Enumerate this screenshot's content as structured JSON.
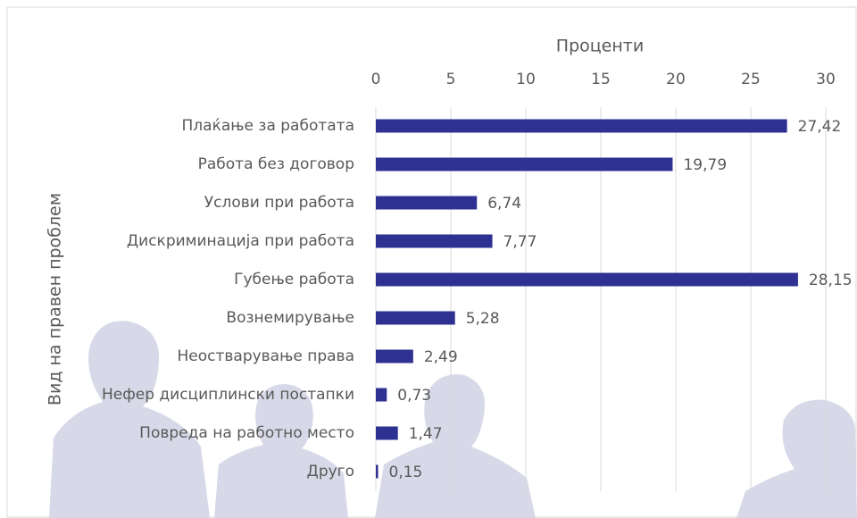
{
  "chart_data": {
    "type": "bar",
    "orientation": "horizontal",
    "x_label": "Проценти",
    "y_label": "Вид на правен проблем",
    "categories": [
      "Плаќање за работата",
      "Работа без договор",
      "Услови при работа",
      "Дискриминација при работа",
      "Губење работа",
      "Вознемирување",
      "Неостварување права",
      "Нефер дисциплински постапки",
      "Повреда на работно место",
      "Друго"
    ],
    "values": [
      27.42,
      19.79,
      6.74,
      7.77,
      28.15,
      5.28,
      2.49,
      0.73,
      1.47,
      0.15
    ],
    "value_labels": [
      "27,42",
      "19,79",
      "6,74",
      "7,77",
      "28,15",
      "5,28",
      "2,49",
      "0,73",
      "1,47",
      "0,15"
    ],
    "color": "#2e3192",
    "xlim": [
      0,
      30
    ],
    "xticks": [
      0,
      5,
      10,
      15,
      20,
      25,
      30
    ],
    "grid": true
  }
}
